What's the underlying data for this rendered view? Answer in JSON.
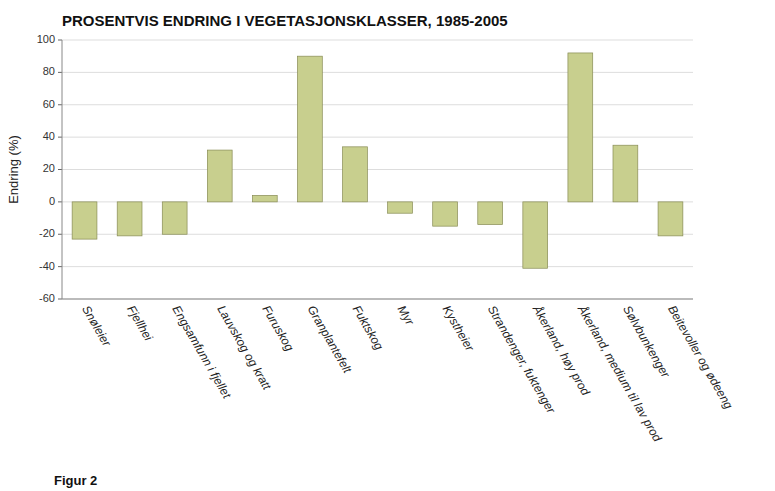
{
  "chart_data": {
    "type": "bar",
    "title": "PROSENTVIS ENDRING I VEGETASJONSKLASSER, 1985-2005",
    "ylabel": "Endring (%)",
    "annotations": [
      "Figur 2"
    ],
    "categories": [
      "Snøleier",
      "Fjellhei",
      "Engsamfunn i fjellet",
      "Lauvskog og kratt",
      "Furuskog",
      "Granplantefelt",
      "Fuktskog",
      "Myr",
      "Kystheier",
      "Strandenger, fuktenger",
      "Åkerland, høy prod",
      "Åkerland, medium til lav prod",
      "Sølvbunkenger",
      "Beitevoller og øde­eng"
    ],
    "values": [
      -23,
      -21,
      -20,
      32,
      4,
      90,
      34,
      -7,
      -15,
      -14,
      -41,
      92,
      35,
      -21
    ],
    "color": "#c8cf8e",
    "ylim": [
      -60,
      100
    ],
    "yticks": [
      -60,
      -40,
      -20,
      0,
      20,
      40,
      60,
      80,
      100
    ],
    "grid": true
  }
}
